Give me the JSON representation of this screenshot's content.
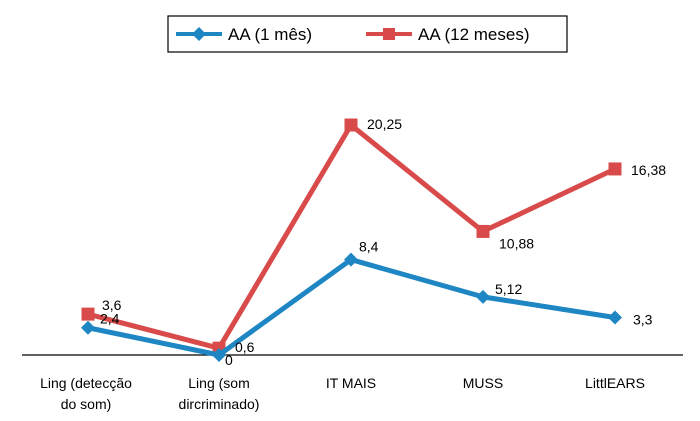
{
  "chart_data": {
    "type": "line",
    "categories": [
      "Ling (detecção do som)",
      "Ling (som dircriminado)",
      "IT MAIS",
      "MUSS",
      "LittlEARS"
    ],
    "category_lines": [
      [
        "Ling (detecção",
        "do som)"
      ],
      [
        "Ling (som",
        "dircriminado)"
      ],
      [
        "IT MAIS"
      ],
      [
        "MUSS"
      ],
      [
        "LittlEARS"
      ]
    ],
    "series": [
      {
        "name": "AA (1 mês)",
        "values": [
          2.4,
          0,
          8.4,
          5.12,
          3.3
        ],
        "labels": [
          "2,4",
          "0",
          "8,4",
          "5,12",
          "3,3"
        ],
        "color": "#1f86c4",
        "marker": "diamond"
      },
      {
        "name": "AA (12 meses)",
        "values": [
          3.6,
          0.6,
          20.25,
          10.88,
          16.38
        ],
        "labels": [
          "3,6",
          "0,6",
          "20,25",
          "10,88",
          "16,38"
        ],
        "color": "#d94b4b",
        "marker": "square"
      }
    ],
    "ylim": [
      0,
      22
    ],
    "grid": false,
    "legend_position": "top",
    "title": "",
    "xlabel": "",
    "ylabel": ""
  }
}
